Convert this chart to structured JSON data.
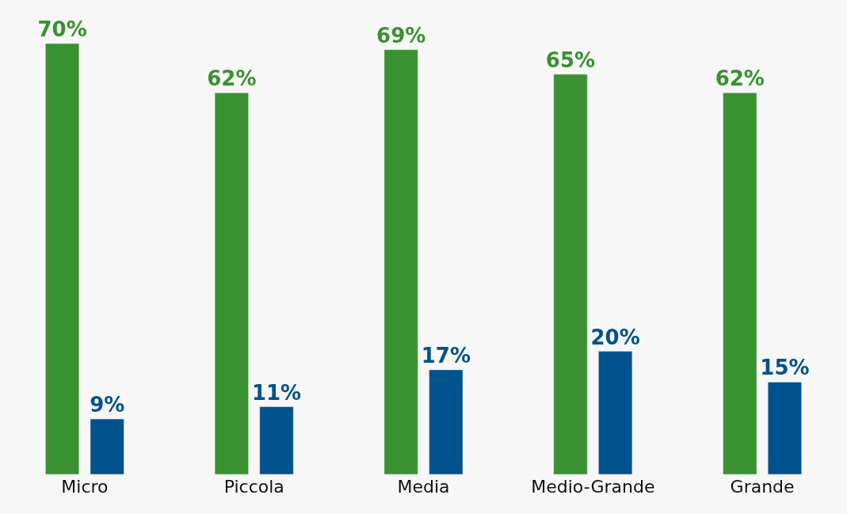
{
  "chart_data": {
    "type": "bar",
    "categories": [
      "Micro",
      "Piccola",
      "Media",
      "Medio-Grande",
      "Grande"
    ],
    "series": [
      {
        "color": "#3a9130",
        "values": [
          70,
          62,
          69,
          65,
          62
        ],
        "value_labels": [
          "70%",
          "62%",
          "69%",
          "65%",
          "62%"
        ]
      },
      {
        "color": "#00538c",
        "values": [
          9,
          11,
          17,
          20,
          15
        ],
        "value_labels": [
          "9%",
          "11%",
          "17%",
          "20%",
          "15%"
        ]
      }
    ]
  }
}
